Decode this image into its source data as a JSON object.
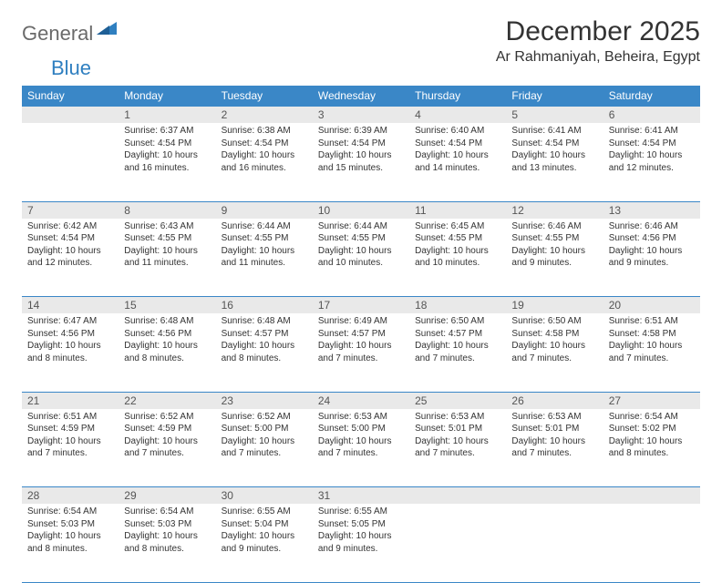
{
  "brand": {
    "part1": "General",
    "part2": "Blue"
  },
  "title": "December 2025",
  "location": "Ar Rahmaniyah, Beheira, Egypt",
  "colors": {
    "header_bg": "#3a87c7",
    "header_fg": "#ffffff",
    "daynum_bg": "#e9e9e9",
    "rule": "#3a87c7",
    "logo_gray": "#6a6a6a",
    "logo_blue": "#2f7fc0",
    "text": "#333333",
    "page_bg": "#ffffff"
  },
  "typography": {
    "title_fontsize": 30,
    "location_fontsize": 16,
    "weekday_fontsize": 12,
    "daynum_fontsize": 12,
    "cell_fontsize": 10
  },
  "weekdays": [
    "Sunday",
    "Monday",
    "Tuesday",
    "Wednesday",
    "Thursday",
    "Friday",
    "Saturday"
  ],
  "weeks": [
    [
      null,
      {
        "n": "1",
        "sunrise": "Sunrise: 6:37 AM",
        "sunset": "Sunset: 4:54 PM",
        "day1": "Daylight: 10 hours",
        "day2": "and 16 minutes."
      },
      {
        "n": "2",
        "sunrise": "Sunrise: 6:38 AM",
        "sunset": "Sunset: 4:54 PM",
        "day1": "Daylight: 10 hours",
        "day2": "and 16 minutes."
      },
      {
        "n": "3",
        "sunrise": "Sunrise: 6:39 AM",
        "sunset": "Sunset: 4:54 PM",
        "day1": "Daylight: 10 hours",
        "day2": "and 15 minutes."
      },
      {
        "n": "4",
        "sunrise": "Sunrise: 6:40 AM",
        "sunset": "Sunset: 4:54 PM",
        "day1": "Daylight: 10 hours",
        "day2": "and 14 minutes."
      },
      {
        "n": "5",
        "sunrise": "Sunrise: 6:41 AM",
        "sunset": "Sunset: 4:54 PM",
        "day1": "Daylight: 10 hours",
        "day2": "and 13 minutes."
      },
      {
        "n": "6",
        "sunrise": "Sunrise: 6:41 AM",
        "sunset": "Sunset: 4:54 PM",
        "day1": "Daylight: 10 hours",
        "day2": "and 12 minutes."
      }
    ],
    [
      {
        "n": "7",
        "sunrise": "Sunrise: 6:42 AM",
        "sunset": "Sunset: 4:54 PM",
        "day1": "Daylight: 10 hours",
        "day2": "and 12 minutes."
      },
      {
        "n": "8",
        "sunrise": "Sunrise: 6:43 AM",
        "sunset": "Sunset: 4:55 PM",
        "day1": "Daylight: 10 hours",
        "day2": "and 11 minutes."
      },
      {
        "n": "9",
        "sunrise": "Sunrise: 6:44 AM",
        "sunset": "Sunset: 4:55 PM",
        "day1": "Daylight: 10 hours",
        "day2": "and 11 minutes."
      },
      {
        "n": "10",
        "sunrise": "Sunrise: 6:44 AM",
        "sunset": "Sunset: 4:55 PM",
        "day1": "Daylight: 10 hours",
        "day2": "and 10 minutes."
      },
      {
        "n": "11",
        "sunrise": "Sunrise: 6:45 AM",
        "sunset": "Sunset: 4:55 PM",
        "day1": "Daylight: 10 hours",
        "day2": "and 10 minutes."
      },
      {
        "n": "12",
        "sunrise": "Sunrise: 6:46 AM",
        "sunset": "Sunset: 4:55 PM",
        "day1": "Daylight: 10 hours",
        "day2": "and 9 minutes."
      },
      {
        "n": "13",
        "sunrise": "Sunrise: 6:46 AM",
        "sunset": "Sunset: 4:56 PM",
        "day1": "Daylight: 10 hours",
        "day2": "and 9 minutes."
      }
    ],
    [
      {
        "n": "14",
        "sunrise": "Sunrise: 6:47 AM",
        "sunset": "Sunset: 4:56 PM",
        "day1": "Daylight: 10 hours",
        "day2": "and 8 minutes."
      },
      {
        "n": "15",
        "sunrise": "Sunrise: 6:48 AM",
        "sunset": "Sunset: 4:56 PM",
        "day1": "Daylight: 10 hours",
        "day2": "and 8 minutes."
      },
      {
        "n": "16",
        "sunrise": "Sunrise: 6:48 AM",
        "sunset": "Sunset: 4:57 PM",
        "day1": "Daylight: 10 hours",
        "day2": "and 8 minutes."
      },
      {
        "n": "17",
        "sunrise": "Sunrise: 6:49 AM",
        "sunset": "Sunset: 4:57 PM",
        "day1": "Daylight: 10 hours",
        "day2": "and 7 minutes."
      },
      {
        "n": "18",
        "sunrise": "Sunrise: 6:50 AM",
        "sunset": "Sunset: 4:57 PM",
        "day1": "Daylight: 10 hours",
        "day2": "and 7 minutes."
      },
      {
        "n": "19",
        "sunrise": "Sunrise: 6:50 AM",
        "sunset": "Sunset: 4:58 PM",
        "day1": "Daylight: 10 hours",
        "day2": "and 7 minutes."
      },
      {
        "n": "20",
        "sunrise": "Sunrise: 6:51 AM",
        "sunset": "Sunset: 4:58 PM",
        "day1": "Daylight: 10 hours",
        "day2": "and 7 minutes."
      }
    ],
    [
      {
        "n": "21",
        "sunrise": "Sunrise: 6:51 AM",
        "sunset": "Sunset: 4:59 PM",
        "day1": "Daylight: 10 hours",
        "day2": "and 7 minutes."
      },
      {
        "n": "22",
        "sunrise": "Sunrise: 6:52 AM",
        "sunset": "Sunset: 4:59 PM",
        "day1": "Daylight: 10 hours",
        "day2": "and 7 minutes."
      },
      {
        "n": "23",
        "sunrise": "Sunrise: 6:52 AM",
        "sunset": "Sunset: 5:00 PM",
        "day1": "Daylight: 10 hours",
        "day2": "and 7 minutes."
      },
      {
        "n": "24",
        "sunrise": "Sunrise: 6:53 AM",
        "sunset": "Sunset: 5:00 PM",
        "day1": "Daylight: 10 hours",
        "day2": "and 7 minutes."
      },
      {
        "n": "25",
        "sunrise": "Sunrise: 6:53 AM",
        "sunset": "Sunset: 5:01 PM",
        "day1": "Daylight: 10 hours",
        "day2": "and 7 minutes."
      },
      {
        "n": "26",
        "sunrise": "Sunrise: 6:53 AM",
        "sunset": "Sunset: 5:01 PM",
        "day1": "Daylight: 10 hours",
        "day2": "and 7 minutes."
      },
      {
        "n": "27",
        "sunrise": "Sunrise: 6:54 AM",
        "sunset": "Sunset: 5:02 PM",
        "day1": "Daylight: 10 hours",
        "day2": "and 8 minutes."
      }
    ],
    [
      {
        "n": "28",
        "sunrise": "Sunrise: 6:54 AM",
        "sunset": "Sunset: 5:03 PM",
        "day1": "Daylight: 10 hours",
        "day2": "and 8 minutes."
      },
      {
        "n": "29",
        "sunrise": "Sunrise: 6:54 AM",
        "sunset": "Sunset: 5:03 PM",
        "day1": "Daylight: 10 hours",
        "day2": "and 8 minutes."
      },
      {
        "n": "30",
        "sunrise": "Sunrise: 6:55 AM",
        "sunset": "Sunset: 5:04 PM",
        "day1": "Daylight: 10 hours",
        "day2": "and 9 minutes."
      },
      {
        "n": "31",
        "sunrise": "Sunrise: 6:55 AM",
        "sunset": "Sunset: 5:05 PM",
        "day1": "Daylight: 10 hours",
        "day2": "and 9 minutes."
      },
      null,
      null,
      null
    ]
  ]
}
